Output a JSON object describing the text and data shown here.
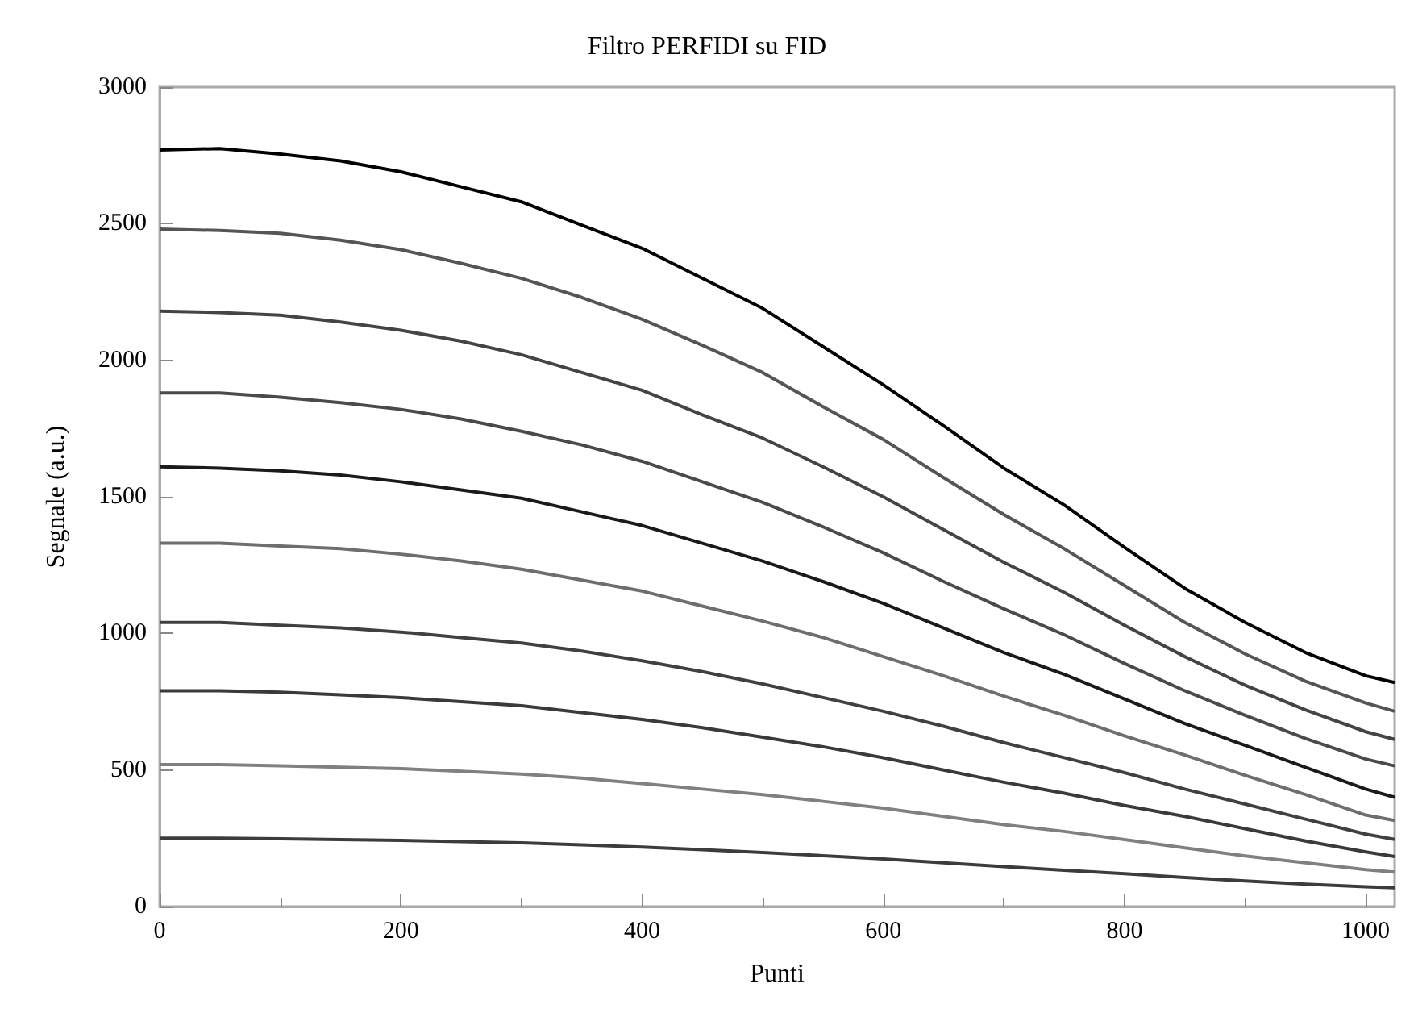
{
  "chart_data": {
    "type": "line",
    "title": "Filtro PERFIDI su FID",
    "xlabel": "Punti",
    "ylabel": "Segnale (a.u.)",
    "x": [
      0,
      50,
      100,
      150,
      200,
      250,
      300,
      350,
      400,
      450,
      500,
      550,
      600,
      650,
      700,
      750,
      800,
      850,
      900,
      950,
      1000,
      1024
    ],
    "xlim": [
      0,
      1024
    ],
    "xticks": [
      0,
      200,
      400,
      600,
      800,
      1000
    ],
    "ylim": [
      0,
      3000
    ],
    "yticks": [
      0,
      500,
      1000,
      1500,
      2000,
      2500,
      3000
    ],
    "grid": false,
    "series": [
      {
        "color": "#000000",
        "values": [
          2770,
          2775,
          2755,
          2730,
          2690,
          2635,
          2580,
          2495,
          2410,
          2300,
          2190,
          2050,
          1910,
          1760,
          1605,
          1470,
          1315,
          1165,
          1040,
          930,
          845,
          820
        ]
      },
      {
        "color": "#555555",
        "values": [
          2480,
          2475,
          2465,
          2440,
          2405,
          2355,
          2300,
          2230,
          2150,
          2055,
          1955,
          1830,
          1710,
          1570,
          1435,
          1310,
          1175,
          1040,
          925,
          825,
          745,
          715
        ]
      },
      {
        "color": "#444444",
        "values": [
          2180,
          2175,
          2165,
          2140,
          2110,
          2070,
          2020,
          1955,
          1890,
          1800,
          1715,
          1610,
          1500,
          1380,
          1260,
          1150,
          1030,
          915,
          810,
          720,
          640,
          612
        ]
      },
      {
        "color": "#4a4a4a",
        "values": [
          1880,
          1880,
          1865,
          1845,
          1820,
          1785,
          1740,
          1690,
          1630,
          1555,
          1480,
          1390,
          1295,
          1190,
          1090,
          995,
          890,
          790,
          700,
          615,
          540,
          515
        ]
      },
      {
        "color": "#1a1a1a",
        "values": [
          1610,
          1605,
          1595,
          1580,
          1555,
          1525,
          1495,
          1445,
          1395,
          1330,
          1265,
          1190,
          1110,
          1020,
          930,
          850,
          760,
          670,
          590,
          510,
          430,
          400
        ]
      },
      {
        "color": "#6e6e6e",
        "values": [
          1330,
          1330,
          1320,
          1310,
          1290,
          1265,
          1235,
          1195,
          1155,
          1100,
          1045,
          985,
          915,
          845,
          770,
          700,
          625,
          555,
          480,
          410,
          335,
          315
        ]
      },
      {
        "color": "#404040",
        "values": [
          1040,
          1040,
          1030,
          1020,
          1005,
          985,
          965,
          935,
          900,
          860,
          815,
          765,
          715,
          660,
          600,
          545,
          490,
          430,
          375,
          320,
          265,
          246
        ]
      },
      {
        "color": "#3a3a3a",
        "values": [
          790,
          790,
          785,
          775,
          765,
          750,
          735,
          710,
          685,
          655,
          620,
          585,
          545,
          500,
          455,
          415,
          370,
          330,
          285,
          240,
          200,
          183
        ]
      },
      {
        "color": "#808080",
        "values": [
          520,
          520,
          515,
          510,
          505,
          495,
          485,
          470,
          450,
          430,
          410,
          385,
          360,
          330,
          300,
          275,
          245,
          215,
          185,
          160,
          135,
          126
        ]
      },
      {
        "color": "#3c3c3c",
        "values": [
          250,
          250,
          248,
          245,
          242,
          238,
          233,
          226,
          218,
          208,
          198,
          186,
          174,
          160,
          146,
          133,
          120,
          106,
          94,
          82,
          72,
          69
        ]
      }
    ]
  }
}
